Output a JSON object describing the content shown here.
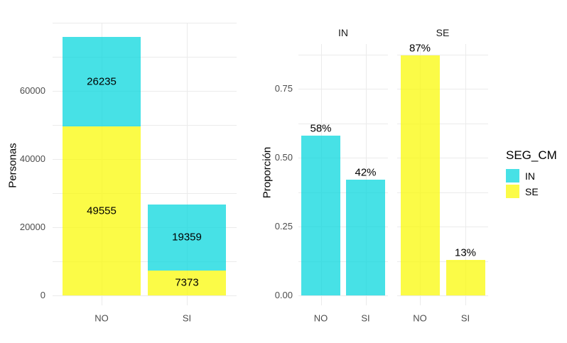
{
  "style": {
    "background": "#ffffff",
    "grid_color": "#ebebeb",
    "tick_label_color": "#4d4d4d",
    "text_color": "#000000",
    "strip_label_color": "#1a1a1a"
  },
  "colors": {
    "IN": "rgba(0,213,221,0.72)",
    "SE": "rgba(250,250,0,0.72)"
  },
  "legend": {
    "title": "SEG_CM",
    "position": "right",
    "items": [
      {
        "label": "IN",
        "color_key": "IN"
      },
      {
        "label": "SE",
        "color_key": "SE"
      }
    ]
  },
  "chart_data": [
    {
      "type": "bar",
      "stacked": true,
      "title": "",
      "xlabel": "",
      "ylabel": "Personas",
      "categories": [
        "NO",
        "SI"
      ],
      "series": [
        {
          "name": "SE",
          "color_key": "SE",
          "values": [
            49555,
            7373
          ]
        },
        {
          "name": "IN",
          "color_key": "IN",
          "values": [
            26235,
            19359
          ]
        }
      ],
      "bar_value_labels": [
        [
          "49555",
          "26235"
        ],
        [
          "7373",
          "19359"
        ]
      ],
      "yticks": [
        {
          "label": "0",
          "value": 0
        },
        {
          "label": "20000",
          "value": 20000
        },
        {
          "label": "40000",
          "value": 40000
        },
        {
          "label": "60000",
          "value": 60000
        }
      ],
      "grid_major_values": [
        0,
        20000,
        40000,
        60000,
        80000
      ],
      "grid_minor_values": [
        10000,
        30000,
        50000,
        70000
      ],
      "ylim": [
        0,
        80000
      ],
      "grid": true
    },
    {
      "type": "bar",
      "faceted_by": "SEG_CM",
      "title": "",
      "xlabel": "",
      "ylabel": "Proporción",
      "yticks": [
        {
          "label": "0.00",
          "value": 0
        },
        {
          "label": "0.25",
          "value": 0.25
        },
        {
          "label": "0.50",
          "value": 0.5
        },
        {
          "label": "0.75",
          "value": 0.75
        }
      ],
      "grid_major_values": [
        0,
        0.25,
        0.5,
        0.75
      ],
      "grid_minor_values": [
        0.125,
        0.375,
        0.625,
        0.875
      ],
      "ylim": [
        0,
        0.9135
      ],
      "grid": true,
      "facets": [
        {
          "label": "IN",
          "color_key": "IN",
          "categories": [
            "NO",
            "SI"
          ],
          "values": [
            0.58,
            0.42
          ],
          "value_labels": [
            "58%",
            "42%"
          ]
        },
        {
          "label": "SE",
          "color_key": "SE",
          "categories": [
            "NO",
            "SI"
          ],
          "values": [
            0.87,
            0.13
          ],
          "value_labels": [
            "87%",
            "13%"
          ]
        }
      ]
    }
  ]
}
